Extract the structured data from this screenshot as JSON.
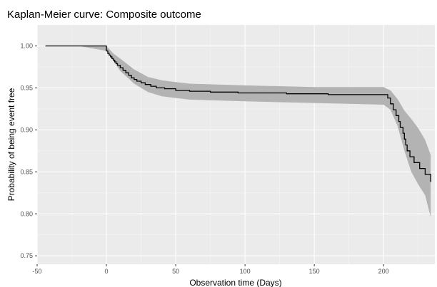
{
  "chart_data": {
    "type": "line",
    "title": "Kaplan-Meier curve: Composite outcome",
    "xlabel": "Observation time (Days)",
    "ylabel": "Probability of being event free",
    "xlim": [
      -50,
      237
    ],
    "ylim": [
      0.74,
      1.025
    ],
    "x_ticks": [
      -50,
      0,
      50,
      100,
      150,
      200
    ],
    "x_tick_labels": [
      "-50",
      "0",
      "50",
      "100",
      "150",
      "200"
    ],
    "y_ticks": [
      0.75,
      0.8,
      0.85,
      0.9,
      0.95,
      1.0
    ],
    "y_tick_labels": [
      "0.75",
      "0.80",
      "0.85",
      "0.90",
      "0.95",
      "1.00"
    ],
    "grid": true,
    "series": [
      {
        "kind": "step",
        "color": "#000000",
        "x": [
          -44,
          0,
          1,
          2,
          3,
          4,
          5,
          6,
          7,
          8,
          10,
          12,
          14,
          16,
          18,
          20,
          22,
          25,
          28,
          32,
          36,
          42,
          50,
          60,
          75,
          95,
          130,
          160,
          203,
          205,
          207,
          209,
          211,
          212,
          214,
          215,
          216,
          217,
          219,
          222,
          226,
          230,
          234
        ],
        "y": [
          1.0,
          0.994,
          0.991,
          0.989,
          0.987,
          0.985,
          0.983,
          0.981,
          0.979,
          0.977,
          0.974,
          0.971,
          0.968,
          0.965,
          0.962,
          0.96,
          0.958,
          0.956,
          0.954,
          0.952,
          0.95,
          0.949,
          0.947,
          0.946,
          0.945,
          0.944,
          0.943,
          0.942,
          0.938,
          0.931,
          0.924,
          0.917,
          0.91,
          0.903,
          0.896,
          0.889,
          0.882,
          0.875,
          0.868,
          0.861,
          0.854,
          0.847,
          0.838
        ]
      }
    ],
    "confidence_band": {
      "color": "#b3b3b3",
      "x": [
        -44,
        -20,
        0,
        5,
        10,
        20,
        30,
        40,
        50,
        60,
        100,
        150,
        200,
        205,
        210,
        215,
        220,
        225,
        230,
        234
      ],
      "upper": [
        1.0,
        1.0,
        1.0,
        0.991,
        0.985,
        0.972,
        0.963,
        0.959,
        0.957,
        0.955,
        0.953,
        0.951,
        0.951,
        0.947,
        0.937,
        0.923,
        0.913,
        0.902,
        0.888,
        0.87
      ],
      "lower": [
        1.0,
        1.0,
        0.994,
        0.982,
        0.97,
        0.955,
        0.945,
        0.94,
        0.938,
        0.936,
        0.934,
        0.932,
        0.93,
        0.924,
        0.905,
        0.875,
        0.85,
        0.835,
        0.822,
        0.796
      ]
    }
  }
}
